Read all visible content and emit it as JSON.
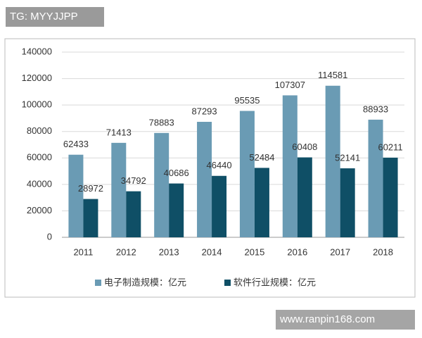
{
  "chart_data": {
    "type": "bar",
    "categories": [
      "2011",
      "2012",
      "2013",
      "2014",
      "2015",
      "2016",
      "2017",
      "2018"
    ],
    "series": [
      {
        "name": "电子制造规模：亿元",
        "color": "#6a9bb4",
        "values": [
          62433,
          71413,
          78883,
          87293,
          95535,
          107307,
          114581,
          88933
        ]
      },
      {
        "name": "软件行业规模：亿元",
        "color": "#0f4f66",
        "values": [
          28972,
          34792,
          40686,
          46440,
          52484,
          60408,
          52141,
          60211
        ]
      }
    ],
    "ylim": [
      0,
      140000
    ],
    "yticks": [
      0,
      20000,
      40000,
      60000,
      80000,
      100000,
      120000,
      140000
    ],
    "grid": true,
    "legend": "bottom"
  },
  "watermarks": [
    "TG: MYYJJPP",
    "www.ranpin168.com"
  ]
}
